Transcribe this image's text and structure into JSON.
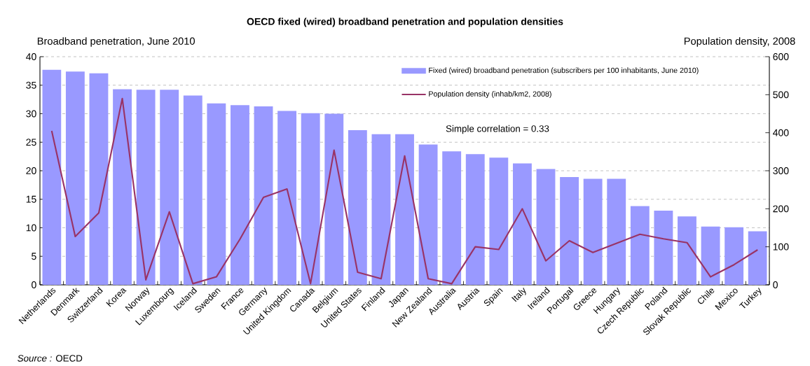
{
  "chart_data": {
    "type": "bar",
    "title": "OECD fixed (wired) broadband penetration and population densities",
    "ylabel": "Broadband penetration, June 2010",
    "y2label": "Population density, 2008",
    "categories": [
      "Netherlands",
      "Denmark",
      "Switzerland",
      "Korea",
      "Norway",
      "Luxembourg",
      "Iceland",
      "Sweden",
      "France",
      "Germany",
      "United Kingdom",
      "Canada",
      "Belgium",
      "United States",
      "Finland",
      "Japan",
      "New Zealand",
      "Australia",
      "Austria",
      "Spain",
      "Italy",
      "Ireland",
      "Portugal",
      "Greece",
      "Hungary",
      "Czech Republic",
      "Poland",
      "Slovak Republic",
      "Chile",
      "Mexico",
      "Turkey"
    ],
    "series": [
      {
        "name": "Fixed (wired) broadband penetration (subscribers per 100 inhabitants, June 2010)",
        "color": "#9999ff",
        "values": [
          37.7,
          37.4,
          37.1,
          34.3,
          34.2,
          34.2,
          33.2,
          31.8,
          31.5,
          31.3,
          30.5,
          30.1,
          30.0,
          27.1,
          26.4,
          26.4,
          24.6,
          23.4,
          22.9,
          22.3,
          21.3,
          20.3,
          18.9,
          18.6,
          18.6,
          13.8,
          13.0,
          12.0,
          10.2,
          10.1,
          9.4
        ]
      },
      {
        "name": "Population density (inhab/km2, 2008)",
        "type": "line",
        "axis": "y2",
        "color": "#993366",
        "values": [
          405,
          127,
          189,
          490,
          13,
          192,
          3,
          21,
          120,
          230,
          252,
          3,
          354,
          33,
          16,
          339,
          16,
          3,
          100,
          93,
          200,
          63,
          116,
          85,
          109,
          133,
          121,
          111,
          21,
          53,
          92
        ]
      }
    ],
    "ylim": [
      0,
      40
    ],
    "yticks": [
      0,
      5,
      10,
      15,
      20,
      25,
      30,
      35,
      40
    ],
    "y2lim": [
      0,
      600
    ],
    "y2ticks": [
      0,
      100,
      200,
      300,
      400,
      500,
      600
    ],
    "grid": "y",
    "legend": "top right",
    "annotations": [
      "Simple correlation = 0.33",
      "*Source :*  OECD"
    ]
  }
}
